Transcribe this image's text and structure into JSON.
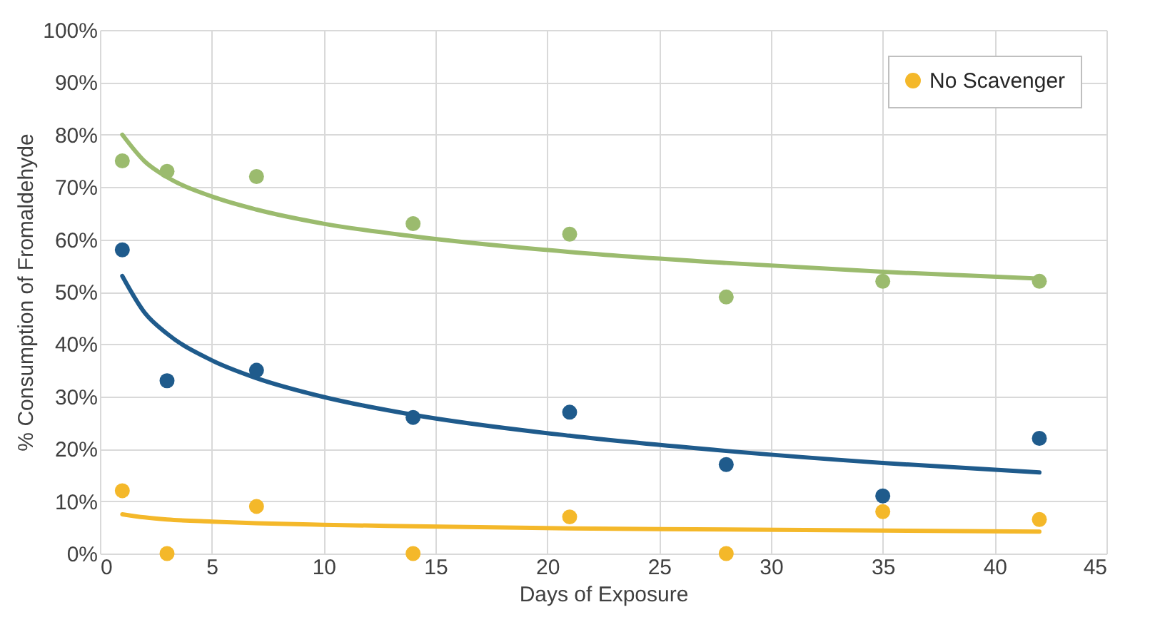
{
  "chart_data": {
    "type": "scatter",
    "xlabel": "Days of Exposure",
    "ylabel": "% Consumption of Fromaldehyde",
    "xlim": [
      0,
      45
    ],
    "xticks": [
      0,
      5,
      10,
      15,
      20,
      25,
      30,
      35,
      40,
      45
    ],
    "ylim": [
      0,
      100
    ],
    "yticks": [
      {
        "value": 0,
        "label": "0%"
      },
      {
        "value": 10,
        "label": "10%"
      },
      {
        "value": 20,
        "label": "20%"
      },
      {
        "value": 30,
        "label": "30%"
      },
      {
        "value": 40,
        "label": "40%"
      },
      {
        "value": 50,
        "label": "50%"
      },
      {
        "value": 60,
        "label": "60%"
      },
      {
        "value": 70,
        "label": "70%"
      },
      {
        "value": 80,
        "label": "80%"
      },
      {
        "value": 90,
        "label": "90%"
      },
      {
        "value": 100,
        "label": "100%"
      }
    ],
    "grid": true,
    "legend": "top right",
    "marker": "circle",
    "series": [
      {
        "name": "No Scavenger",
        "color": "#f4b82a",
        "x": [
          1,
          3,
          7,
          14,
          21,
          28,
          35,
          42
        ],
        "values": [
          12,
          0,
          9,
          0,
          7,
          0,
          8,
          6.5
        ]
      },
      {
        "color": "#9bbb6e",
        "x": [
          1,
          3,
          7,
          14,
          21,
          28,
          35,
          42
        ],
        "values": [
          75,
          73,
          72,
          63,
          61,
          49,
          52,
          52
        ]
      },
      {
        "color": "#1f5b8c",
        "x": [
          1,
          3,
          7,
          14,
          21,
          28,
          35,
          42
        ],
        "values": [
          58,
          33,
          35,
          26,
          27,
          17,
          11,
          22
        ]
      },
      {
        "type": "line",
        "marker": "none",
        "color": "#f4b82a",
        "x": [
          1,
          2,
          3,
          5,
          7,
          10,
          14,
          21,
          28,
          35,
          42
        ],
        "values": [
          7.5,
          6.9,
          6.5,
          6.1,
          5.8,
          5.5,
          5.2,
          4.8,
          4.6,
          4.4,
          4.2
        ]
      },
      {
        "type": "line",
        "marker": "none",
        "color": "#9bbb6e",
        "x": [
          1,
          2,
          3,
          5,
          7,
          10,
          14,
          21,
          28,
          35,
          42
        ],
        "values": [
          80,
          74.9,
          71.9,
          68.2,
          65.7,
          63,
          60.6,
          57.6,
          55.5,
          53.8,
          52.5
        ]
      },
      {
        "type": "line",
        "marker": "none",
        "color": "#1f5b8c",
        "x": [
          1,
          2,
          3,
          5,
          7,
          10,
          14,
          21,
          28,
          35,
          42
        ],
        "values": [
          53,
          46,
          42,
          36.9,
          33.5,
          29.9,
          26.5,
          22.5,
          19.6,
          17.3,
          15.5
        ]
      }
    ]
  }
}
